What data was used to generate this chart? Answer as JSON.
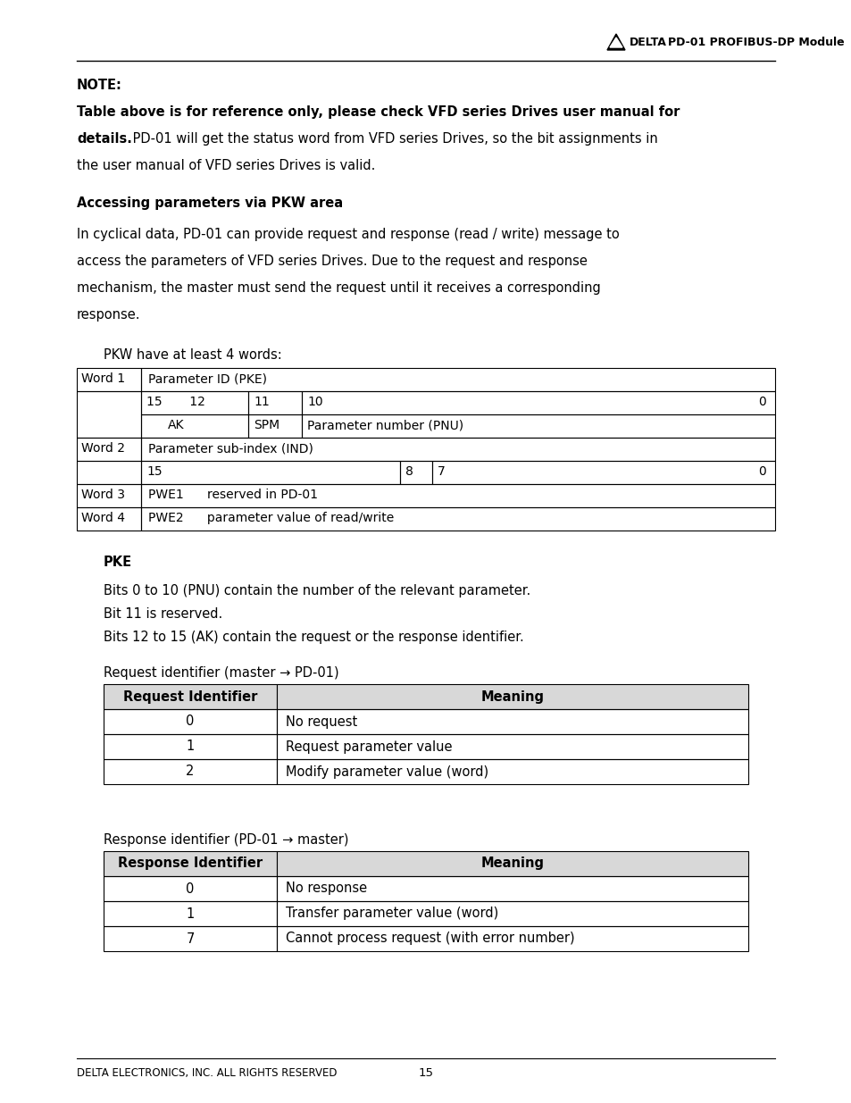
{
  "bg_color": "#ffffff",
  "text_color": "#000000",
  "header_right_text": "PD-01 PROFIBUS-DP Module",
  "note_bold": "NOTE:",
  "note_line1_bold": "Table above is for reference only, please check VFD series Drives user manual for",
  "note_line2_bold": "details.",
  "note_line2_normal": " PD-01 will get the status word from VFD series Drives, so the bit assignments in",
  "note_line3": "the user manual of VFD series Drives is valid.",
  "section_title": "Accessing parameters via PKW area",
  "para_lines": [
    "In cyclical data, PD-01 can provide request and response (read / write) message to",
    "access the parameters of VFD series Drives. Due to the request and response",
    "mechanism, the master must send the request until it receives a corresponding",
    "response."
  ],
  "pkw_intro": "PKW have at least 4 words:",
  "pke_title": "PKE",
  "pke_line1": "Bits 0 to 10 (PNU) contain the number of the relevant parameter.",
  "pke_line2": "Bit 11 is reserved.",
  "pke_line3": "Bits 12 to 15 (AK) contain the request or the response identifier.",
  "req_label": "Request identifier (master → PD-01)",
  "req_headers": [
    "Request Identifier",
    "Meaning"
  ],
  "req_rows": [
    [
      "0",
      "No request"
    ],
    [
      "1",
      "Request parameter value"
    ],
    [
      "2",
      "Modify parameter value (word)"
    ]
  ],
  "resp_label": "Response identifier (PD-01 → master)",
  "resp_headers": [
    "Response Identifier",
    "Meaning"
  ],
  "resp_rows": [
    [
      "0",
      "No response"
    ],
    [
      "1",
      "Transfer parameter value (word)"
    ],
    [
      "7",
      "Cannot process request (with error number)"
    ]
  ],
  "footer_left": "DELTA ELECTRONICS, INC. ALL RIGHTS RESERVED",
  "footer_page": "15"
}
